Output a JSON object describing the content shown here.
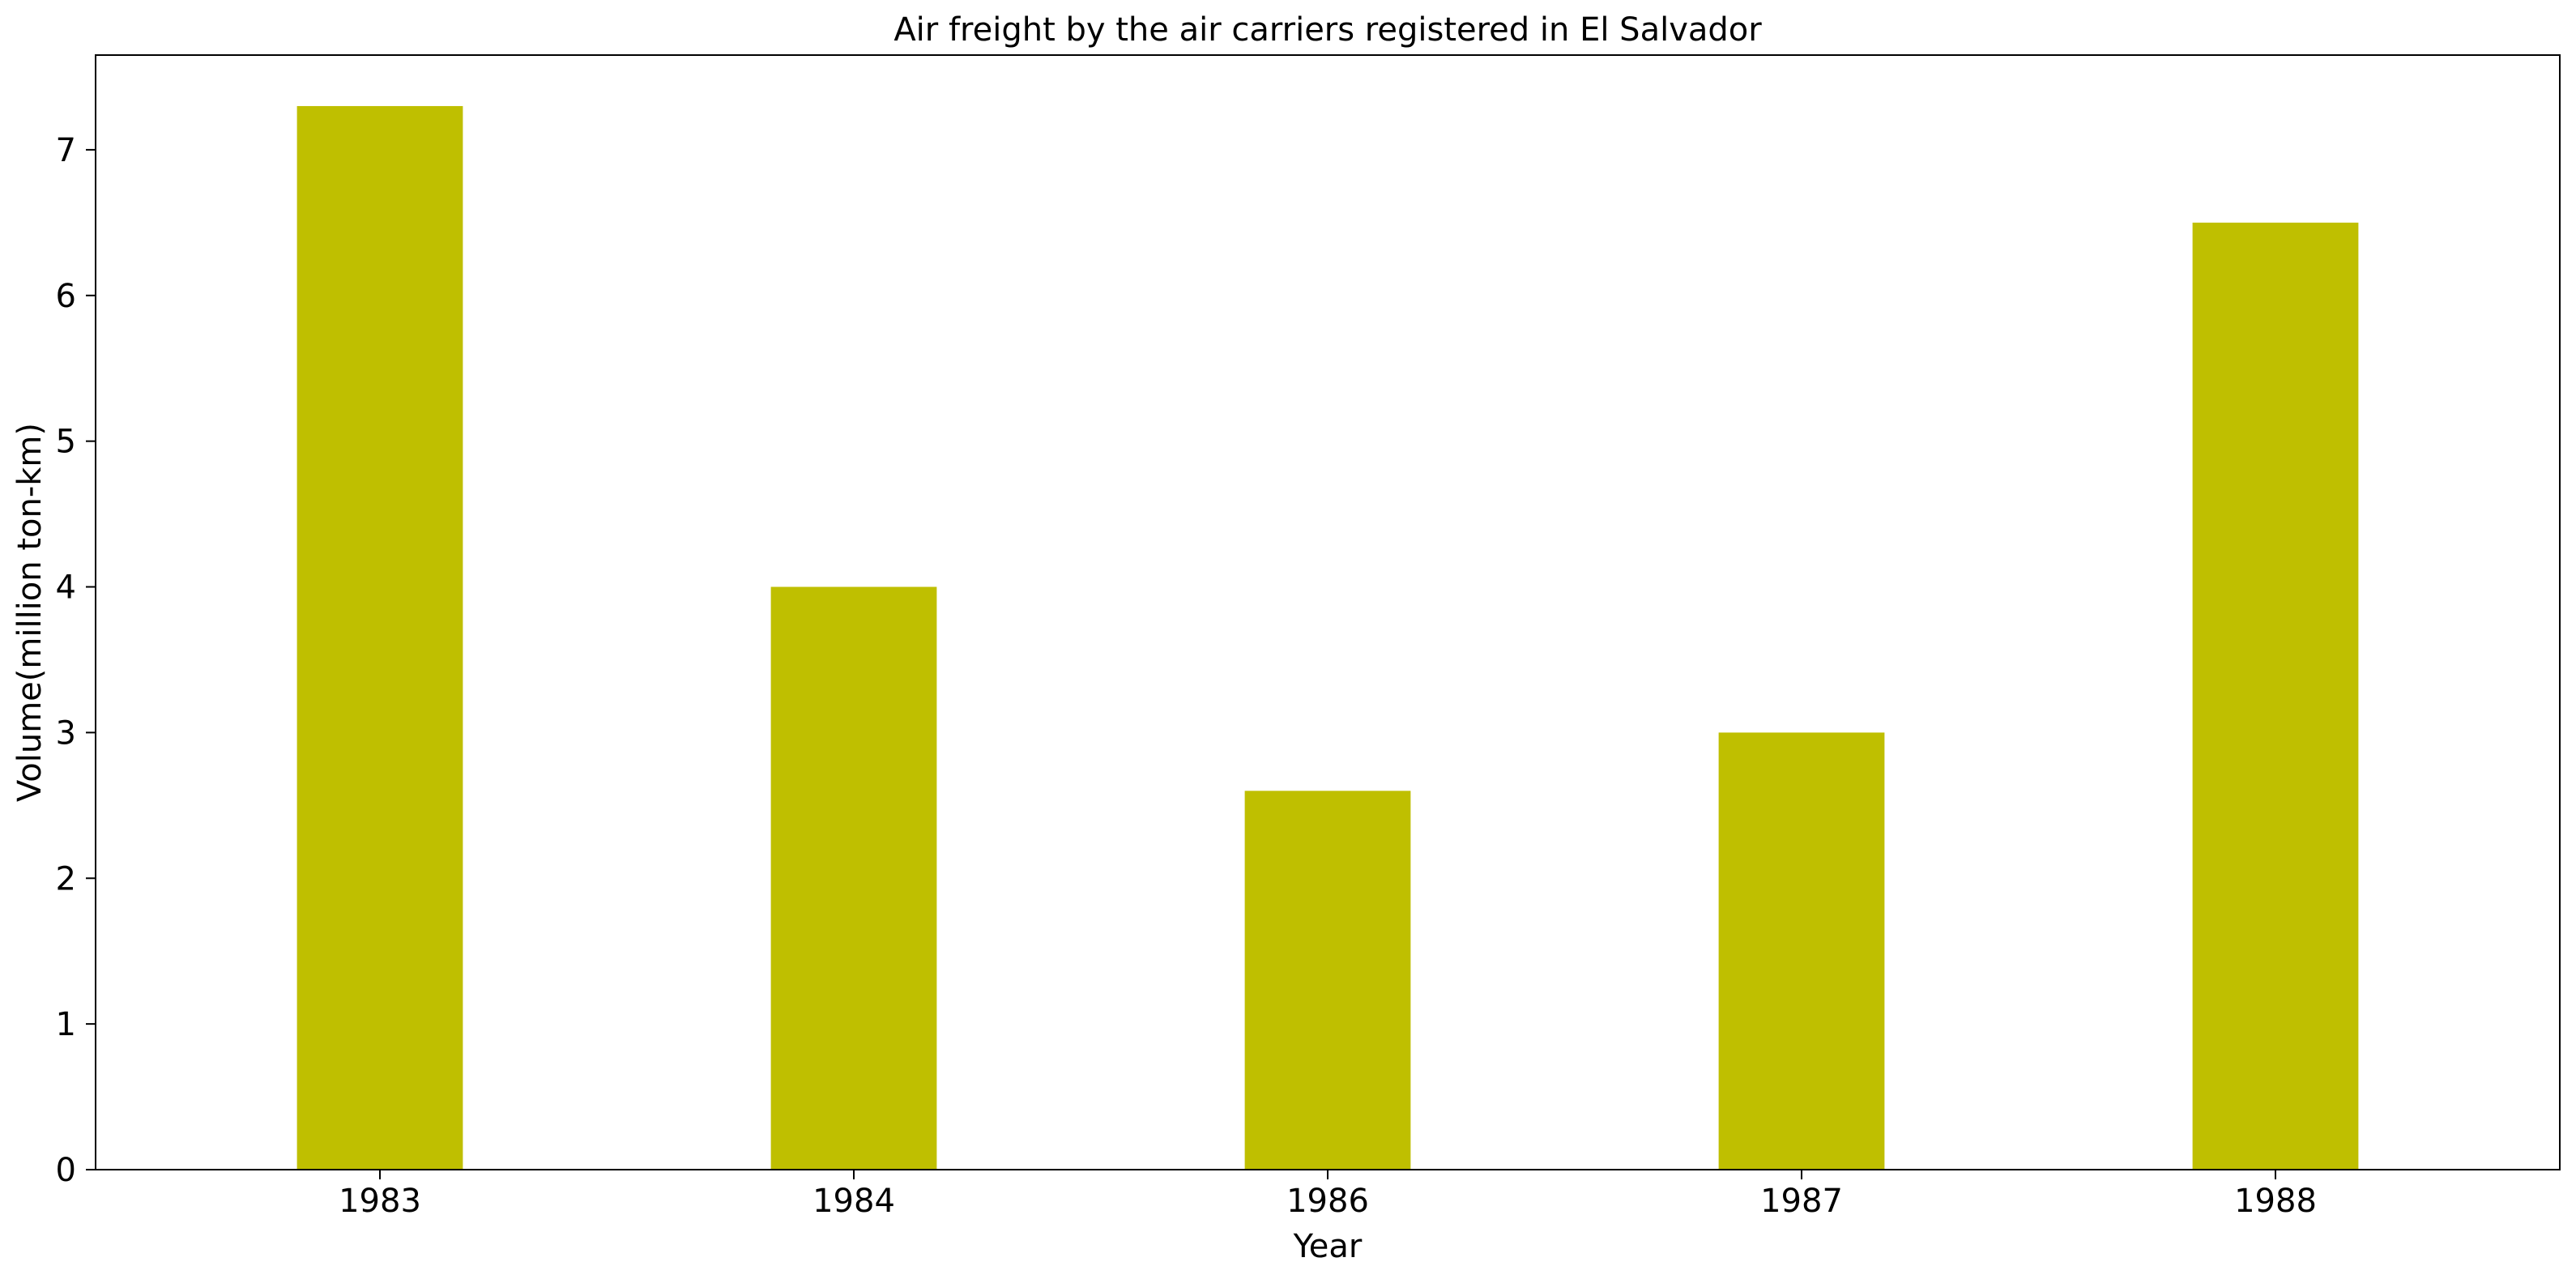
{
  "chart_data": {
    "type": "bar",
    "title": "Air freight by the air carriers registered in El Salvador",
    "xlabel": "Year",
    "ylabel": "Volume(million ton-km)",
    "categories": [
      "1983",
      "1984",
      "1986",
      "1987",
      "1988"
    ],
    "values": [
      7.3,
      4.0,
      2.6,
      3.0,
      6.5
    ],
    "ylim": [
      0,
      7.65
    ],
    "yticks": [
      0,
      1,
      2,
      3,
      4,
      5,
      6,
      7
    ],
    "grid": false,
    "legend": "none",
    "bar_color": "#bfbf00"
  }
}
